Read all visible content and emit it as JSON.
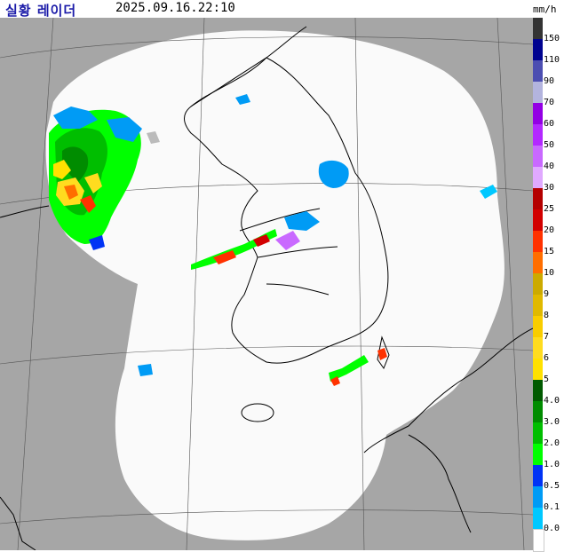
{
  "header": {
    "title": "실황 레이더",
    "timestamp": "2025.09.16.22:10",
    "unit": "mm/h"
  },
  "legend": {
    "levels": [
      {
        "label": "150",
        "color": "#333333"
      },
      {
        "label": "110",
        "color": "#000390"
      },
      {
        "label": "90",
        "color": "#4c4eb1"
      },
      {
        "label": "70",
        "color": "#b3b4de"
      },
      {
        "label": "60",
        "color": "#9300e4"
      },
      {
        "label": "50",
        "color": "#b329ff"
      },
      {
        "label": "40",
        "color": "#c969ff"
      },
      {
        "label": "30",
        "color": "#e0a9ff"
      },
      {
        "label": "25",
        "color": "#b40000"
      },
      {
        "label": "20",
        "color": "#d20000"
      },
      {
        "label": "15",
        "color": "#ff3200"
      },
      {
        "label": "10",
        "color": "#ff6e00"
      },
      {
        "label": "9",
        "color": "#ccaa00"
      },
      {
        "label": "8",
        "color": "#e0b900"
      },
      {
        "label": "7",
        "color": "#f9cd00"
      },
      {
        "label": "6",
        "color": "#ffdc1f"
      },
      {
        "label": "5",
        "color": "#ffe100"
      },
      {
        "label": "4.0",
        "color": "#005a00"
      },
      {
        "label": "3.0",
        "color": "#008c00"
      },
      {
        "label": "2.0",
        "color": "#00be00"
      },
      {
        "label": "1.0",
        "color": "#00ff00"
      },
      {
        "label": "0.5",
        "color": "#0033f5"
      },
      {
        "label": "0.1",
        "color": "#009bf5"
      },
      {
        "label": "0.0",
        "color": "#00c8ff"
      }
    ],
    "zero_color": "#ffffff"
  },
  "map": {
    "outside_coverage_color": "#a6a6a6",
    "coverage_color": "#fafafa",
    "coastline_color": "#000000"
  }
}
